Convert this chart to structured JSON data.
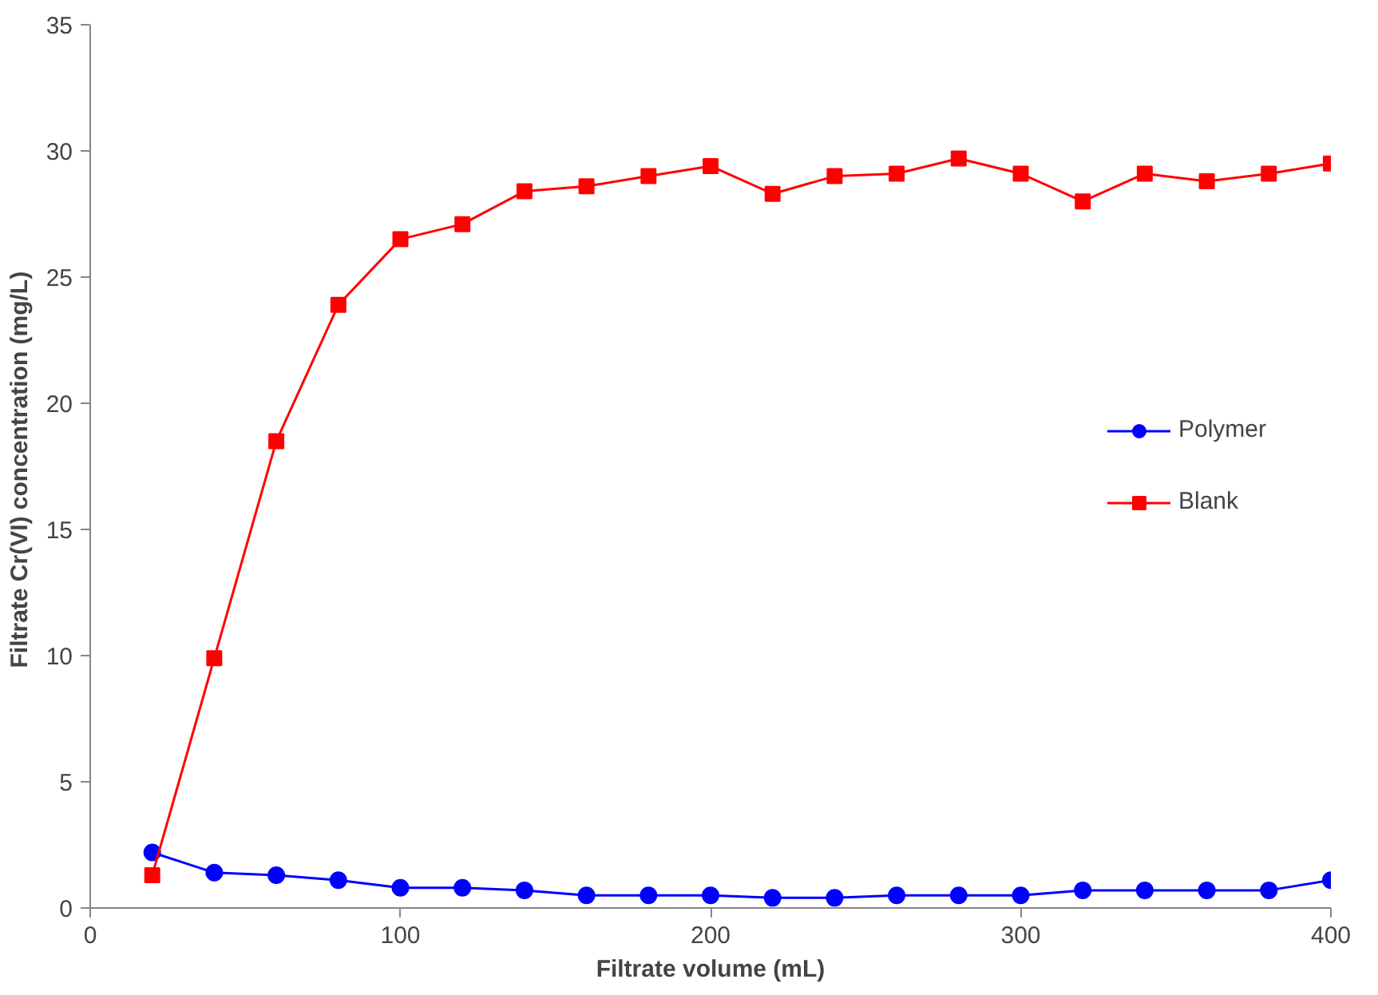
{
  "chart_data": {
    "type": "line",
    "xlabel": "Filtrate volume (mL)",
    "ylabel": "Filtrate Cr(VI) concentration  (mg/L)",
    "x": [
      20,
      40,
      60,
      80,
      100,
      120,
      140,
      160,
      180,
      200,
      220,
      240,
      260,
      280,
      300,
      320,
      340,
      360,
      380,
      400
    ],
    "series": [
      {
        "name": "Polymer",
        "color": "#0000ff",
        "marker": "circle",
        "values": [
          2.2,
          1.4,
          1.3,
          1.1,
          0.8,
          0.8,
          0.7,
          0.5,
          0.5,
          0.5,
          0.4,
          0.4,
          0.5,
          0.5,
          0.5,
          0.7,
          0.7,
          0.7,
          0.7,
          1.1
        ]
      },
      {
        "name": "Blank",
        "color": "#ff0000",
        "marker": "square",
        "values": [
          1.3,
          9.9,
          18.5,
          23.9,
          26.5,
          27.1,
          28.4,
          28.6,
          29.0,
          29.4,
          28.3,
          29.0,
          29.1,
          29.7,
          29.1,
          28.0,
          29.1,
          28.8,
          29.1,
          29.5
        ]
      }
    ],
    "xlim": [
      0,
      400
    ],
    "ylim": [
      0,
      35
    ],
    "xticks": [
      0,
      100,
      200,
      300,
      400
    ],
    "yticks": [
      0,
      5,
      10,
      15,
      20,
      25,
      30,
      35
    ],
    "grid": false,
    "legend": "right",
    "line_style": "solid"
  }
}
